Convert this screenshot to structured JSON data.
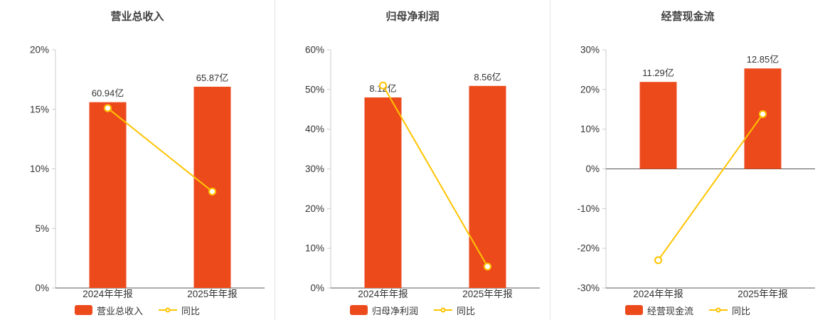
{
  "colors": {
    "bar": "#ED4A1C",
    "line": "#FFC400",
    "axis_light": "#CCCCCC",
    "axis_dark": "#555555",
    "text": "#333333",
    "title": "#404040",
    "divider": "#E3E3E3"
  },
  "chart_data": [
    {
      "type": "bar+line",
      "title": "营业总收入",
      "categories": [
        "2024年年报",
        "2025年年报"
      ],
      "series": [
        {
          "name": "营业总收入",
          "type": "bar",
          "unit": "亿",
          "values": [
            60.94,
            65.87
          ],
          "labels": [
            "60.94亿",
            "65.87亿"
          ],
          "display_pct": [
            15.6,
            16.9
          ]
        },
        {
          "name": "同比",
          "type": "line",
          "values": [
            15.1,
            8.1
          ]
        }
      ],
      "y_axis": {
        "min": 0,
        "max": 20,
        "ticks": [
          0,
          5,
          10,
          15,
          20
        ],
        "tick_labels": [
          "0%",
          "5%",
          "10%",
          "15%",
          "20%"
        ]
      },
      "legend": [
        "营业总收入",
        "同比"
      ],
      "legend_position": "bottom",
      "grid": false
    },
    {
      "type": "bar+line",
      "title": "归母净利润",
      "categories": [
        "2024年年报",
        "2025年年报"
      ],
      "series": [
        {
          "name": "归母净利润",
          "type": "bar",
          "unit": "亿",
          "values": [
            8.12,
            8.56
          ],
          "labels": [
            "8.12亿",
            "8.56亿"
          ],
          "display_pct": [
            48.0,
            50.9
          ]
        },
        {
          "name": "同比",
          "type": "line",
          "values": [
            51.0,
            5.4
          ]
        }
      ],
      "y_axis": {
        "min": 0,
        "max": 60,
        "ticks": [
          0,
          10,
          20,
          30,
          40,
          50,
          60
        ],
        "tick_labels": [
          "0%",
          "10%",
          "20%",
          "30%",
          "40%",
          "50%",
          "60%"
        ]
      },
      "legend": [
        "归母净利润",
        "同比"
      ],
      "legend_position": "bottom",
      "grid": false
    },
    {
      "type": "bar+line",
      "title": "经营现金流",
      "categories": [
        "2024年年报",
        "2025年年报"
      ],
      "series": [
        {
          "name": "经营现金流",
          "type": "bar",
          "unit": "亿",
          "values": [
            11.29,
            12.85
          ],
          "labels": [
            "11.29亿",
            "12.85亿"
          ],
          "display_pct": [
            21.9,
            25.3
          ]
        },
        {
          "name": "同比",
          "type": "line",
          "values": [
            -23.0,
            13.8
          ]
        }
      ],
      "y_axis": {
        "min": -30,
        "max": 30,
        "ticks": [
          -30,
          -20,
          -10,
          0,
          10,
          20,
          30
        ],
        "tick_labels": [
          "-30%",
          "-20%",
          "-10%",
          "0%",
          "10%",
          "20%",
          "30%"
        ]
      },
      "legend": [
        "经营现金流",
        "同比"
      ],
      "legend_position": "bottom",
      "grid": false
    }
  ]
}
